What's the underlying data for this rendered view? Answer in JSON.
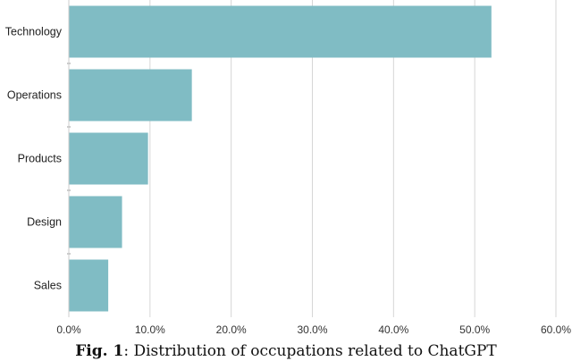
{
  "chart_data": {
    "type": "bar",
    "orientation": "horizontal",
    "categories": [
      "Technology",
      "Operations",
      "Products",
      "Design",
      "Sales"
    ],
    "values": [
      52.0,
      15.1,
      9.7,
      6.5,
      4.8
    ],
    "xlim": [
      0,
      60
    ],
    "xticks": [
      "0.0%",
      "10.0%",
      "20.0%",
      "30.0%",
      "40.0%",
      "50.0%",
      "60.0%"
    ],
    "grid": "vertical",
    "bar_color": "#80bcc4"
  },
  "caption": {
    "lead": "Fig. 1",
    "text": ": Distribution of occupations related to ChatGPT"
  }
}
